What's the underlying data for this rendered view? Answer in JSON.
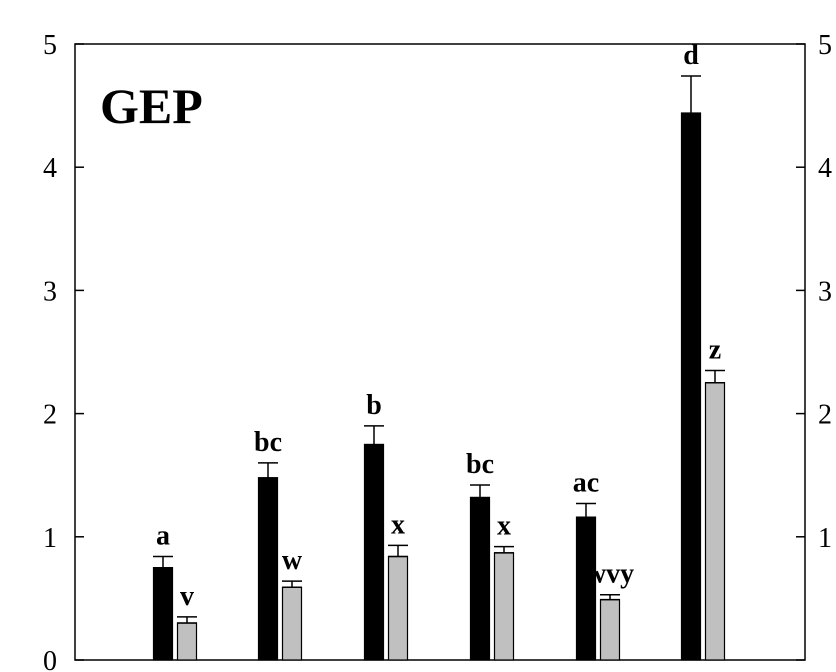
{
  "panel_label": "GEP",
  "colors": {
    "series_a": "#000000",
    "series_b": "#c0c0c0",
    "frame": "#000000"
  },
  "chart_data": {
    "type": "bar",
    "title": "",
    "xlabel": "",
    "ylabel": "",
    "ylim": [
      0,
      5
    ],
    "yticks": [
      0,
      1,
      2,
      3,
      4,
      5
    ],
    "ytick_labels": [
      "0",
      "1",
      "2",
      "3",
      "4",
      "5"
    ],
    "right_ytick_labels": [
      "",
      "1",
      "2",
      "3",
      "4",
      "5"
    ],
    "grid": false,
    "categories": [
      "",
      "",
      "",
      "",
      "",
      ""
    ],
    "series": [
      {
        "color": "#000000",
        "values": [
          0.75,
          1.48,
          1.75,
          1.32,
          1.16,
          4.44
        ],
        "errors": [
          0.09,
          0.12,
          0.15,
          0.1,
          0.11,
          0.3
        ],
        "labels": [
          "a",
          "bc",
          "b",
          "bc",
          "ac",
          "d"
        ]
      },
      {
        "color": "#c0c0c0",
        "values": [
          0.3,
          0.59,
          0.84,
          0.87,
          0.49,
          2.25
        ],
        "errors": [
          0.05,
          0.05,
          0.09,
          0.05,
          0.04,
          0.1
        ],
        "labels": [
          "v",
          "w",
          "x",
          "x",
          "wvy",
          "z"
        ]
      }
    ]
  }
}
